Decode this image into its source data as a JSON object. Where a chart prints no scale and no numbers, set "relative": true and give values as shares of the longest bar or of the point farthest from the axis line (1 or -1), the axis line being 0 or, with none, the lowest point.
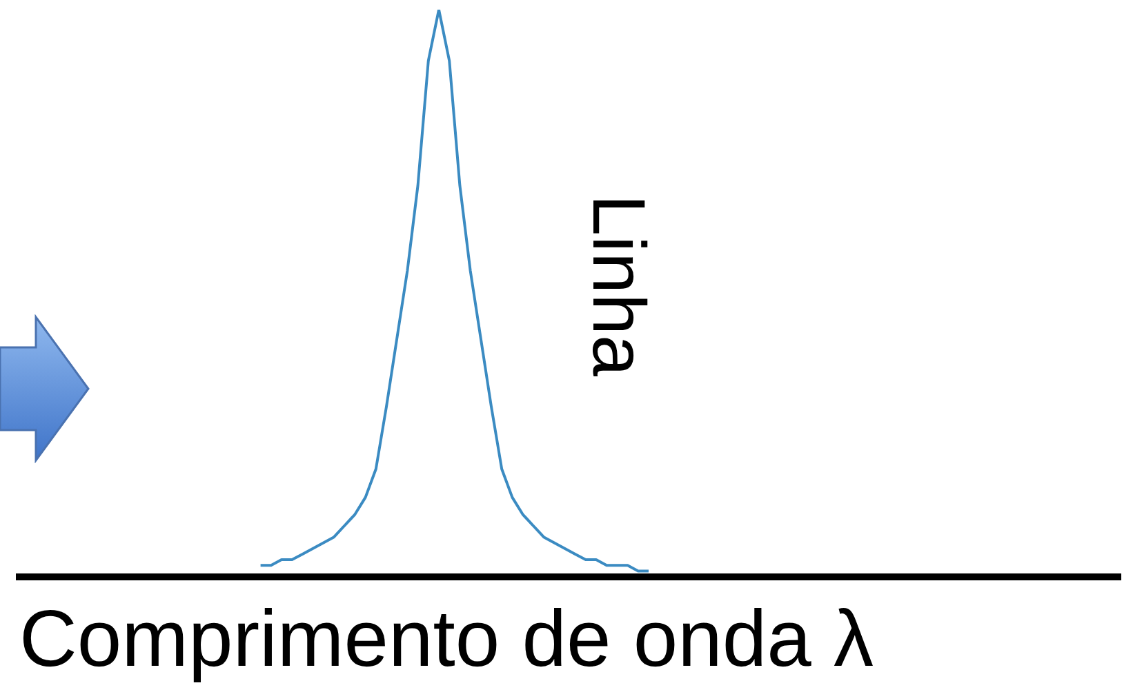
{
  "chart_data": {
    "type": "line",
    "relative": true,
    "xlabel": "Comprimento de onda λ",
    "annotations": [
      "Linha"
    ],
    "categories": [
      null,
      null,
      null,
      null,
      null,
      null,
      null,
      null,
      null,
      null,
      null,
      null,
      null,
      null,
      null,
      null,
      null,
      null,
      null,
      null,
      null,
      null,
      null,
      null,
      null,
      null,
      null,
      null,
      null,
      null,
      null,
      null,
      null,
      null,
      null,
      null,
      null,
      null,
      null,
      null,
      null,
      null,
      null,
      null,
      null,
      null,
      null,
      null,
      null,
      null,
      null,
      null,
      null,
      null,
      null,
      null,
      null,
      null,
      null,
      null,
      null,
      null,
      null,
      null,
      null,
      null,
      null,
      null,
      null,
      null,
      null,
      null,
      null,
      null,
      null,
      null,
      null,
      null,
      null,
      null,
      null,
      null,
      null,
      null,
      null,
      null,
      null,
      null,
      null,
      null,
      null,
      null,
      null,
      null,
      null,
      null,
      null,
      null,
      null,
      null,
      null,
      null,
      null,
      null,
      null,
      null
    ],
    "series": [
      {
        "color": "#3b8bc2",
        "values": [
          null,
          null,
          null,
          null,
          null,
          null,
          null,
          null,
          null,
          null,
          null,
          null,
          null,
          null,
          null,
          null,
          null,
          null,
          null,
          null,
          null,
          null,
          null,
          0.02,
          0.02,
          0.03,
          0.03,
          0.04,
          0.05,
          0.06,
          0.07,
          0.09,
          0.11,
          0.14,
          0.19,
          0.3,
          0.42,
          0.54,
          0.69,
          0.91,
          1.0,
          0.91,
          0.69,
          0.54,
          0.42,
          0.3,
          0.19,
          0.14,
          0.11,
          0.09,
          0.07,
          0.06,
          0.05,
          0.04,
          0.03,
          0.03,
          0.02,
          0.02,
          0.02,
          0.01,
          0.01,
          null,
          null,
          null,
          null,
          null,
          null,
          null,
          null,
          null,
          null,
          null,
          null,
          null,
          null,
          null,
          null,
          null,
          null,
          null,
          null,
          null,
          null,
          null,
          null,
          null,
          null,
          null,
          null,
          null,
          null,
          null,
          null,
          null,
          null,
          null,
          null,
          null,
          null,
          null,
          null,
          null,
          null,
          null,
          null,
          null
        ]
      }
    ]
  }
}
